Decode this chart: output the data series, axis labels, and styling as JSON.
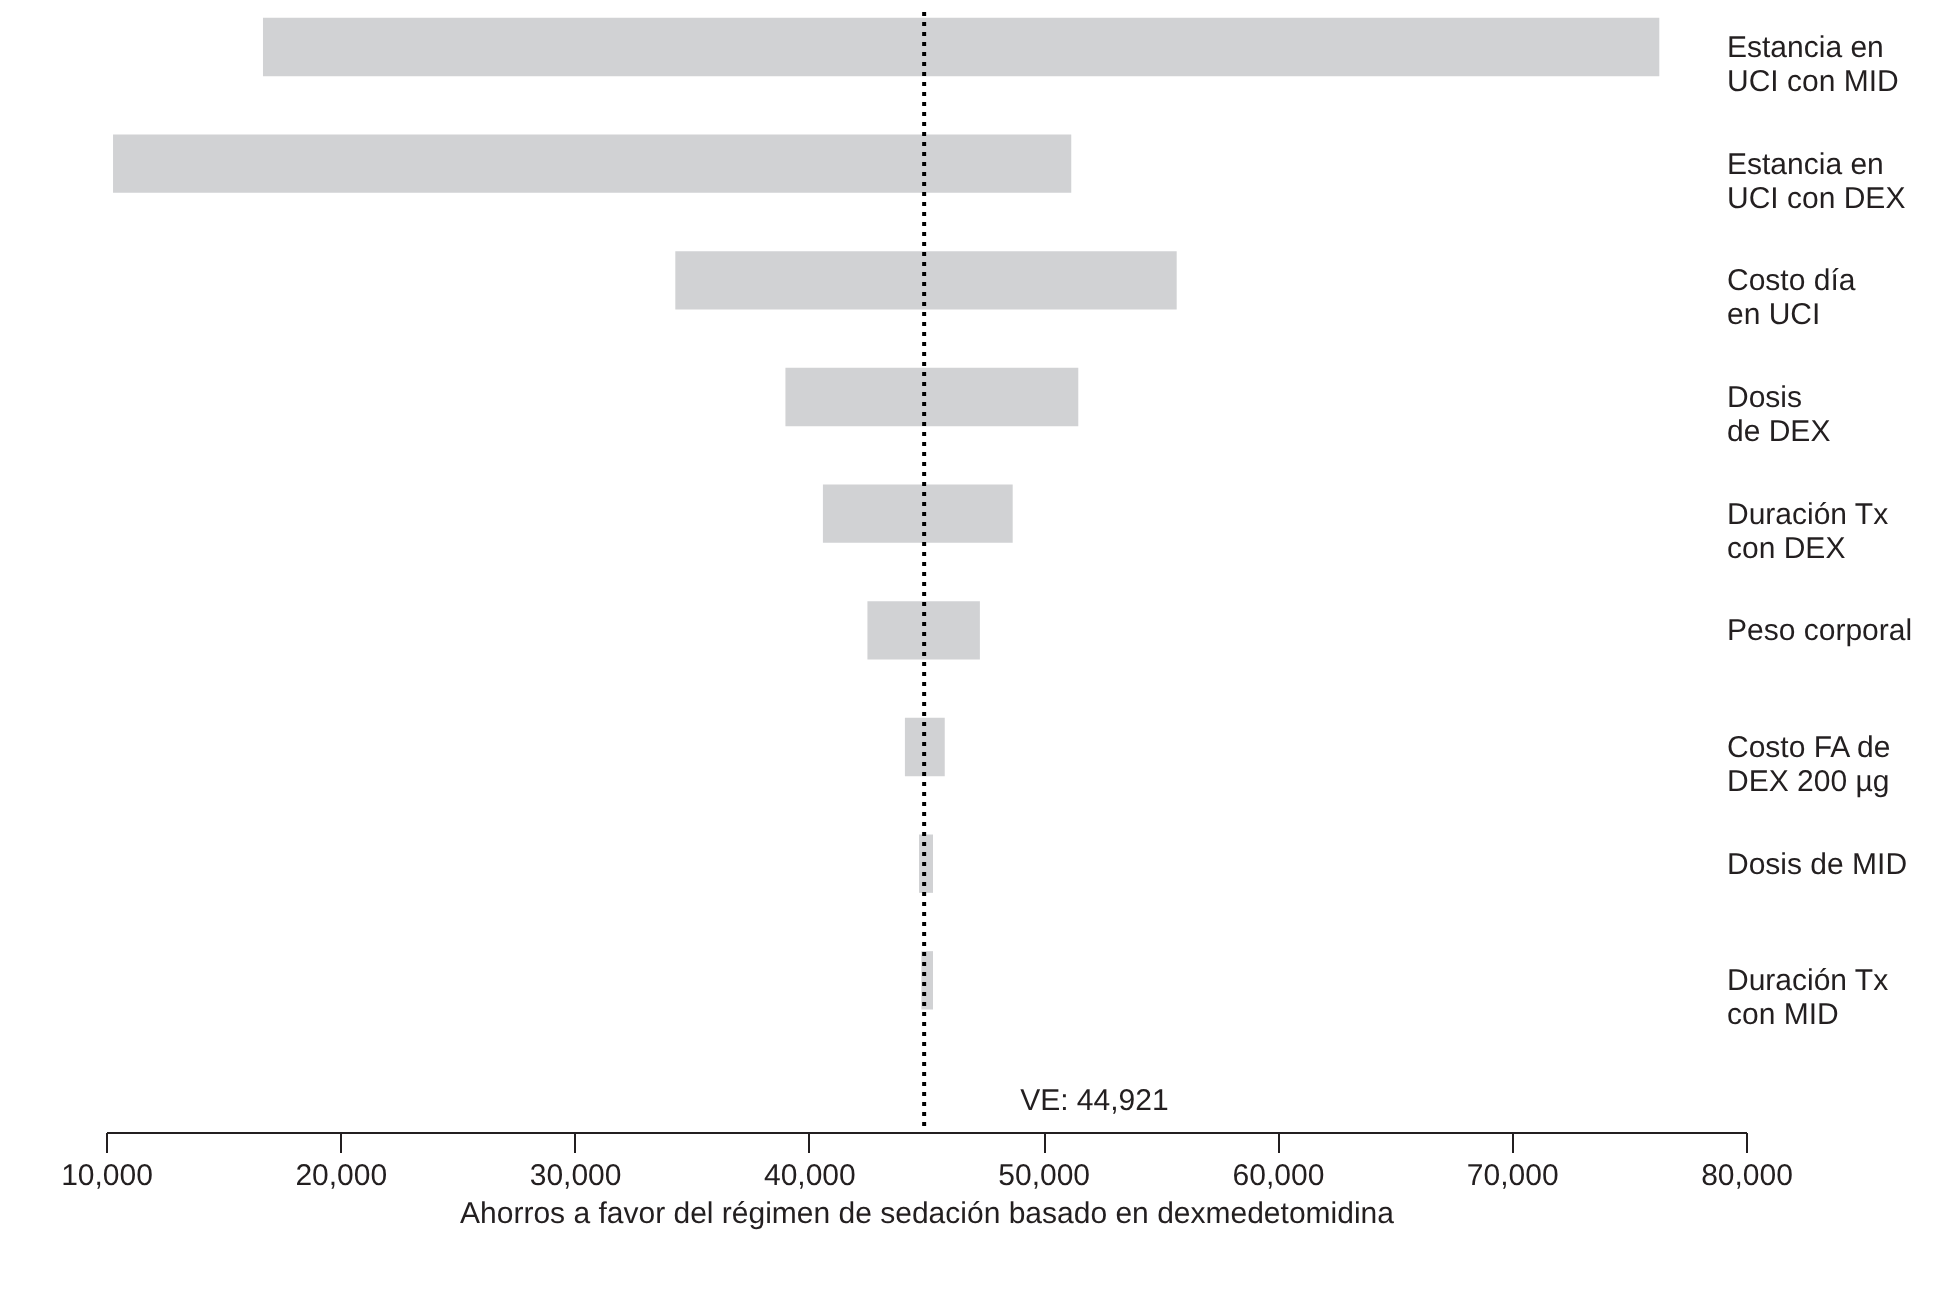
{
  "chart_data": {
    "type": "bar",
    "orientation": "horizontal",
    "xlabel": "Ahorros a favor del régimen de sedación basado en dexmedetomidina",
    "categories": [
      "Estancia en\nUCI con MID",
      "Estancia en\nUCI con DEX",
      "Costo día\nen UCI",
      "Dosis\nde DEX",
      "Duración Tx\ncon DEX",
      "Peso corporal",
      "Costo FA de\nDEX 200 µg",
      "Dosis de MID",
      "Duración Tx\ncon MID"
    ],
    "base": [
      16700,
      10300,
      34300,
      39000,
      40600,
      42500,
      44100,
      44700,
      44800
    ],
    "values": [
      59600,
      40900,
      21400,
      12500,
      8100,
      4800,
      1700,
      600,
      500
    ],
    "color": "#d1d2d4",
    "xlim": [
      10000,
      80000
    ],
    "xticks": [
      {
        "value": 10000,
        "label": "10,000"
      },
      {
        "value": 20000,
        "label": "20,000"
      },
      {
        "value": 30000,
        "label": "30,000"
      },
      {
        "value": 40000,
        "label": "40,000"
      },
      {
        "value": 50000,
        "label": "50,000"
      },
      {
        "value": 60000,
        "label": "60,000"
      },
      {
        "value": 70000,
        "label": "70,000"
      },
      {
        "value": 80000,
        "label": "80,000"
      }
    ],
    "ref_lines": [
      {
        "axis": "x",
        "value": 44921,
        "label": "VE: 44,921",
        "line_style": "dotted",
        "color": "#000000"
      }
    ],
    "grid": false
  }
}
